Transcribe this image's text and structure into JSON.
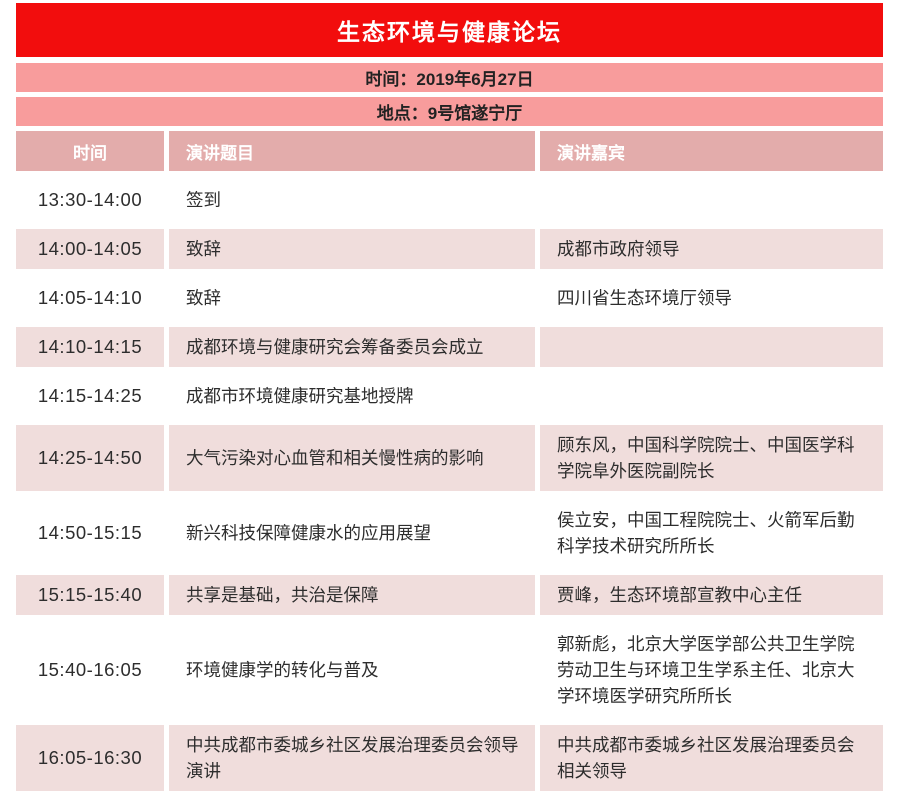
{
  "page": {
    "title": "生态环境与健康论坛",
    "date_line": "时间：2019年6月27日",
    "venue_line": "地点：9号馆遂宁厅"
  },
  "colors": {
    "banner_red": "#f20d0d",
    "info_bar_salmon": "#f89c9c",
    "table_header_rose": "#e3acab",
    "row_pink": "#f0dddc",
    "text_dark": "#2d2d2d",
    "header_text": "#ffffff"
  },
  "table": {
    "headers": [
      "时间",
      "演讲题目",
      "演讲嘉宾"
    ],
    "rows": [
      {
        "time": "13:30-14:00",
        "topic": "签到",
        "guest": ""
      },
      {
        "time": "14:00-14:05",
        "topic": "致辞",
        "guest": "成都市政府领导"
      },
      {
        "time": "14:05-14:10",
        "topic": "致辞",
        "guest": "四川省生态环境厅领导"
      },
      {
        "time": "14:10-14:15",
        "topic": "成都环境与健康研究会筹备委员会成立",
        "guest": ""
      },
      {
        "time": "14:15-14:25",
        "topic": "成都市环境健康研究基地授牌",
        "guest": ""
      },
      {
        "time": "14:25-14:50",
        "topic": "大气污染对心血管和相关慢性病的影响",
        "guest": "顾东风，中国科学院院士、中国医学科学院阜外医院副院长"
      },
      {
        "time": "14:50-15:15",
        "topic": "新兴科技保障健康水的应用展望",
        "guest": "侯立安，中国工程院院士、火箭军后勤科学技术研究所所长"
      },
      {
        "time": "15:15-15:40",
        "topic": "共享是基础，共治是保障",
        "guest": "贾峰，生态环境部宣教中心主任"
      },
      {
        "time": "15:40-16:05",
        "topic": "环境健康学的转化与普及",
        "guest": "郭新彪，北京大学医学部公共卫生学院劳动卫生与环境卫生学系主任、北京大学环境医学研究所所长"
      },
      {
        "time": "16:05-16:30",
        "topic": "中共成都市委城乡社区发展治理委员会领导演讲",
        "guest": "中共成都市委城乡社区发展治理委员会相关领导"
      }
    ]
  }
}
